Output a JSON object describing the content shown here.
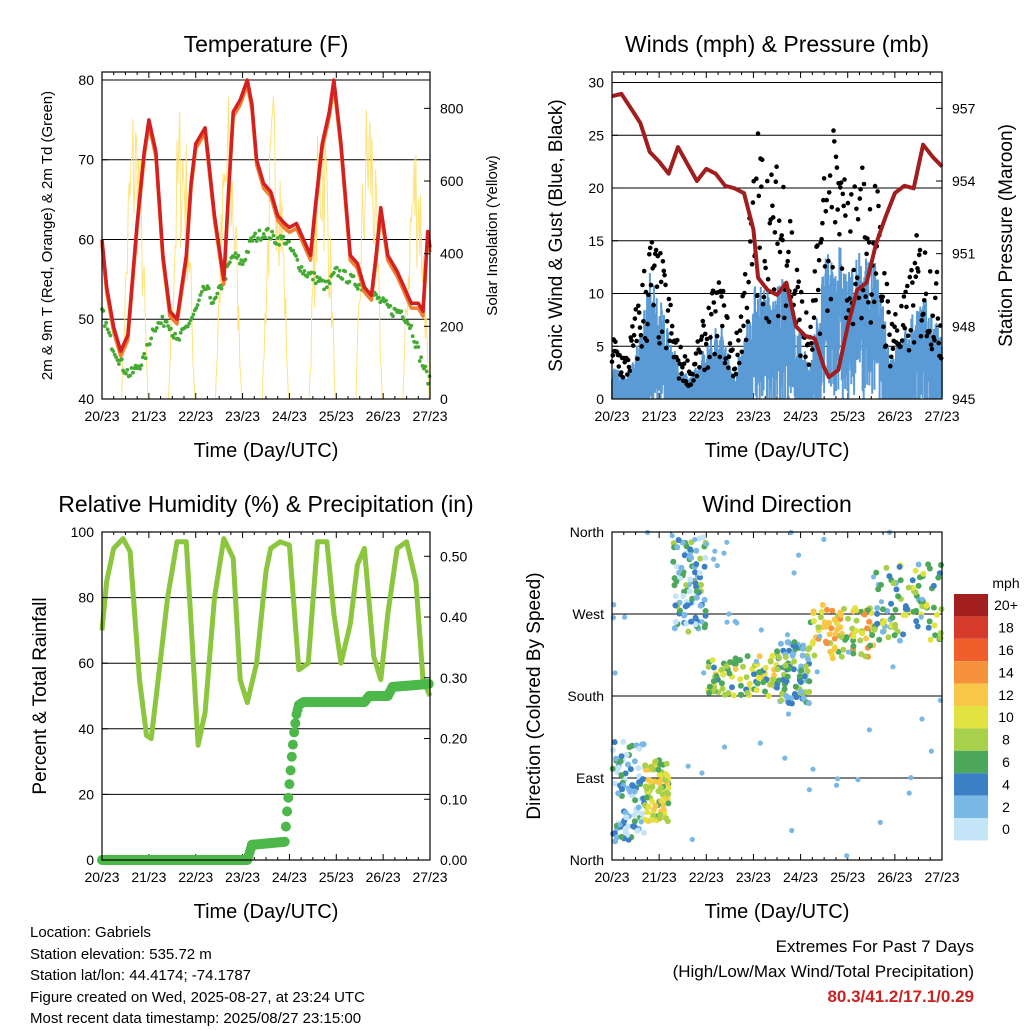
{
  "colors": {
    "temp_2m": "#d42020",
    "temp_9m": "#f08030",
    "dewpoint": "#44aa33",
    "solar": "#ffe27a",
    "sonic_wind": "#5b9bd5",
    "gust": "#000000",
    "pressure": "#a01e1e",
    "rh": "#8cc63f",
    "precip": "#4db84a",
    "extremes": "#cc2222"
  },
  "x_ticks": [
    "20/23",
    "21/23",
    "22/23",
    "23/23",
    "24/23",
    "25/23",
    "26/23",
    "27/23"
  ],
  "chart_data": [
    {
      "type": "line",
      "title": "Temperature (F)",
      "xlabel": "Time (Day/UTC)",
      "ylabel": "2m & 9m T (Red, Orange) & 2m Td (Green)",
      "y2label": "Solar Insolation (Yellow)",
      "ylim": [
        40,
        81
      ],
      "y2lim": [
        0,
        900
      ],
      "yticks": [
        40,
        50,
        60,
        70,
        80
      ],
      "y2ticks": [
        0,
        200,
        400,
        600,
        800
      ],
      "grid_y": [
        50,
        60,
        70,
        80
      ],
      "series": [
        {
          "key": "t2m",
          "x": [
            0,
            0.1,
            0.25,
            0.4,
            0.55,
            0.75,
            0.9,
            1.0,
            1.15,
            1.3,
            1.45,
            1.6,
            1.8,
            1.9,
            2.0,
            2.2,
            2.4,
            2.6,
            2.7,
            2.8,
            2.95,
            3.1,
            3.2,
            3.3,
            3.45,
            3.6,
            3.75,
            3.9,
            4.0,
            4.15,
            4.3,
            4.45,
            4.55,
            4.7,
            4.85,
            4.95,
            5.1,
            5.3,
            5.45,
            5.6,
            5.75,
            5.85,
            5.95,
            6.1,
            6.3,
            6.45,
            6.6,
            6.75,
            6.85,
            6.95,
            7.0
          ],
          "y": [
            60,
            54,
            49,
            46,
            48,
            62,
            71,
            75,
            71,
            58,
            51,
            50,
            58,
            67,
            72,
            74,
            63,
            55,
            66,
            76,
            77.5,
            80,
            77,
            70,
            67,
            66,
            63,
            62,
            61.5,
            62,
            60,
            58,
            64,
            72,
            76,
            80,
            72,
            58,
            57,
            54,
            53,
            58,
            64,
            58,
            56,
            54,
            52,
            52,
            51,
            61,
            59
          ]
        },
        {
          "key": "td2m",
          "x": [
            0,
            0.2,
            0.45,
            0.6,
            0.9,
            1.1,
            1.4,
            1.6,
            1.8,
            2.0,
            2.2,
            2.4,
            2.6,
            2.8,
            3.0,
            3.2,
            3.5,
            3.7,
            3.9,
            4.1,
            4.3,
            4.6,
            4.8,
            5.0,
            5.3,
            5.6,
            5.8,
            6.0,
            6.2,
            6.4,
            6.6,
            6.8,
            7.0
          ],
          "y": [
            51,
            47,
            44,
            43,
            45,
            49,
            50,
            47,
            49,
            51,
            54,
            52,
            55,
            58,
            57,
            60,
            61,
            60,
            60,
            58,
            56,
            55,
            54,
            56,
            55,
            54,
            53,
            52,
            51,
            51,
            49,
            45,
            42
          ]
        },
        {
          "key": "solar",
          "values": [
            880,
            870,
            860,
            900,
            870,
            900,
            780,
            890
          ],
          "peak_day_offset": 0.7
        }
      ]
    },
    {
      "type": "scatter",
      "title": "Winds (mph) & Pressure (mb)",
      "xlabel": "Time (Day/UTC)",
      "ylabel": "Sonic Wind & Gust (Blue, Black)",
      "y2label": "Station Pressure (Maroon)",
      "ylim": [
        0,
        31
      ],
      "y2lim": [
        945,
        958.5
      ],
      "yticks": [
        0,
        5,
        10,
        15,
        20,
        25,
        30
      ],
      "y2ticks": [
        945,
        948,
        951,
        954,
        957
      ],
      "grid_y": [
        5,
        10,
        15,
        20,
        25,
        30
      ],
      "series": [
        {
          "key": "gust_envelope",
          "x": [
            0,
            0.3,
            0.6,
            0.8,
            1.1,
            1.4,
            1.7,
            2.0,
            2.3,
            2.6,
            2.8,
            3.1,
            3.4,
            3.7,
            3.9,
            4.2,
            4.5,
            4.8,
            5.0,
            5.3,
            5.6,
            5.9,
            6.2,
            6.5,
            6.8,
            7.0
          ],
          "y": [
            6,
            4,
            10,
            15,
            12,
            5,
            3,
            8,
            11,
            4,
            12,
            24,
            20,
            22,
            13,
            6,
            22,
            24,
            18,
            21,
            20,
            8,
            9,
            15,
            13,
            9
          ]
        },
        {
          "key": "sonic_wind_envelope",
          "x": [
            0,
            0.3,
            0.6,
            0.8,
            1.1,
            1.4,
            1.7,
            2.0,
            2.3,
            2.6,
            2.8,
            3.1,
            3.4,
            3.7,
            3.9,
            4.2,
            4.5,
            4.8,
            5.0,
            5.3,
            5.6,
            5.9,
            6.2,
            6.5,
            6.8,
            7.0
          ],
          "y": [
            3,
            2,
            6,
            11,
            8,
            3,
            2,
            5,
            7,
            2,
            6,
            11,
            9,
            11,
            7,
            3,
            12,
            14,
            11,
            13,
            12,
            4,
            6,
            9,
            8,
            5
          ]
        },
        {
          "key": "pressure",
          "x": [
            0,
            0.2,
            0.4,
            0.6,
            0.8,
            1.0,
            1.2,
            1.4,
            1.6,
            1.8,
            2.0,
            2.2,
            2.4,
            2.6,
            2.8,
            3.0,
            3.1,
            3.3,
            3.5,
            3.7,
            3.9,
            4.1,
            4.3,
            4.5,
            4.6,
            4.8,
            5.0,
            5.2,
            5.4,
            5.6,
            5.8,
            6.0,
            6.2,
            6.4,
            6.6,
            6.8,
            7.0
          ],
          "y": [
            957.5,
            957.6,
            957.0,
            956.4,
            955.2,
            954.8,
            954.3,
            955.4,
            954.7,
            954.0,
            954.5,
            954.3,
            953.8,
            953.7,
            953.5,
            952.0,
            950.0,
            949.5,
            949.3,
            949.8,
            948.0,
            947.6,
            947.5,
            946.3,
            945.9,
            946.2,
            948.0,
            949.5,
            949.8,
            951.4,
            952.5,
            953.5,
            953.8,
            953.7,
            955.5,
            955.0,
            954.6
          ]
        }
      ]
    },
    {
      "type": "line",
      "title": "Relative Humidity (%) & Precipitation (in)",
      "xlabel": "Time (Day/UTC)",
      "ylabel": "Percent & Total Rainfall",
      "ylim": [
        0,
        100
      ],
      "y2lim": [
        0,
        0.54
      ],
      "yticks": [
        0,
        20,
        40,
        60,
        80,
        100
      ],
      "y2ticks": [
        0.0,
        0.1,
        0.2,
        0.3,
        0.4,
        0.5
      ],
      "y2ticklabels": [
        "0.00",
        "0.10",
        "0.20",
        "0.30",
        "0.40",
        "0.50"
      ],
      "grid_y": [
        20,
        40,
        60,
        80
      ],
      "series": [
        {
          "key": "rh",
          "x": [
            0,
            0.1,
            0.25,
            0.45,
            0.6,
            0.8,
            0.95,
            1.05,
            1.2,
            1.4,
            1.6,
            1.8,
            1.95,
            2.05,
            2.2,
            2.4,
            2.6,
            2.8,
            2.95,
            3.1,
            3.3,
            3.5,
            3.6,
            3.8,
            4.0,
            4.2,
            4.4,
            4.6,
            4.8,
            4.95,
            5.1,
            5.3,
            5.45,
            5.6,
            5.8,
            5.95,
            6.1,
            6.3,
            6.5,
            6.7,
            6.85,
            7.0
          ],
          "y": [
            70,
            85,
            95,
            98,
            94,
            55,
            38,
            37,
            55,
            80,
            97,
            97,
            60,
            35,
            45,
            80,
            98,
            92,
            55,
            48,
            60,
            88,
            95,
            97,
            96,
            58,
            60,
            97,
            97,
            75,
            60,
            72,
            90,
            95,
            62,
            55,
            75,
            95,
            97,
            85,
            55,
            50
          ]
        },
        {
          "key": "precip",
          "x": [
            0,
            1,
            2,
            3.1,
            3.2,
            3.9,
            3.95,
            4.05,
            4.1,
            4.15,
            4.2,
            4.3,
            5.0,
            5.6,
            5.7,
            6.1,
            6.2,
            7.0
          ],
          "y": [
            0,
            0,
            0,
            0,
            0.025,
            0.03,
            0.08,
            0.17,
            0.21,
            0.24,
            0.255,
            0.26,
            0.26,
            0.26,
            0.27,
            0.27,
            0.285,
            0.29
          ]
        }
      ]
    },
    {
      "type": "scatter",
      "title": "Wind Direction",
      "xlabel": "Time (Day/UTC)",
      "ylabel": "Direction (Colored By Speed)",
      "ylim": [
        0,
        360
      ],
      "yticklabels": [
        "North",
        "East",
        "South",
        "West",
        "North"
      ],
      "grid_y": [
        90,
        180,
        270
      ],
      "legend": {
        "title": "mph",
        "labels": [
          "20+",
          "18",
          "16",
          "14",
          "12",
          "10",
          "8",
          "6",
          "4",
          "2",
          "0"
        ],
        "colors": [
          "#a31e1e",
          "#d63a2a",
          "#f05e2c",
          "#f6923b",
          "#f9c748",
          "#e2e240",
          "#a8d04a",
          "#4ea85c",
          "#3b7fc4",
          "#7ab8e6",
          "#c4e4f7"
        ]
      },
      "clusters": [
        {
          "x0": 0,
          "x1": 0.7,
          "y0": 20,
          "y1": 130,
          "speed": 3
        },
        {
          "x0": 0.7,
          "x1": 1.2,
          "y0": 40,
          "y1": 110,
          "speed": 9
        },
        {
          "x0": 1.3,
          "x1": 2.0,
          "y0": 250,
          "y1": 355,
          "speed": 4
        },
        {
          "x0": 2.0,
          "x1": 3.5,
          "y0": 180,
          "y1": 225,
          "speed": 8
        },
        {
          "x0": 3.5,
          "x1": 4.2,
          "y0": 170,
          "y1": 240,
          "speed": 5
        },
        {
          "x0": 4.2,
          "x1": 5.6,
          "y0": 220,
          "y1": 280,
          "speed": 10
        },
        {
          "x0": 5.6,
          "x1": 7.0,
          "y0": 240,
          "y1": 330,
          "speed": 6
        }
      ]
    }
  ],
  "info": {
    "location": "Location: Gabriels",
    "elevation": "Station elevation: 535.72 m",
    "latlon": "Station lat/lon: 44.4174; -74.1787",
    "created": "Figure created on Wed, 2025-08-27, at 23:24 UTC",
    "timestamp": "Most recent data timestamp: 2025/08/27 23:15:00"
  },
  "extremes": {
    "title": "Extremes For Past 7 Days",
    "subtitle": "(High/Low/Max Wind/Total Precipitation)",
    "values": "80.3/41.2/17.1/0.29"
  }
}
